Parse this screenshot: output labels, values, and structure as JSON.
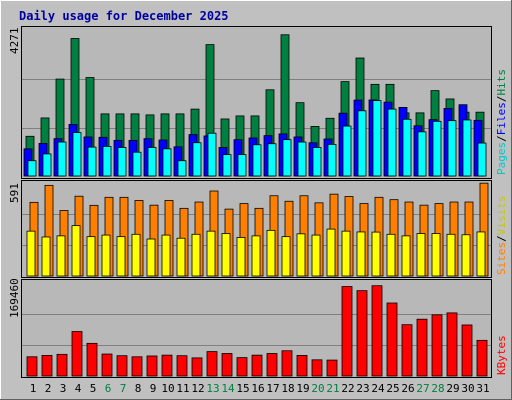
{
  "chart_data": [
    {
      "type": "bar",
      "title": "Daily usage for December 2025",
      "categories": [
        "1",
        "2",
        "3",
        "4",
        "5",
        "6",
        "7",
        "8",
        "9",
        "10",
        "11",
        "12",
        "13",
        "14",
        "15",
        "16",
        "17",
        "18",
        "19",
        "20",
        "21",
        "22",
        "23",
        "24",
        "25",
        "26",
        "27",
        "28",
        "29",
        "30",
        "31"
      ],
      "weekend_days": [
        "6",
        "7",
        "13",
        "14",
        "20",
        "21",
        "27",
        "28"
      ],
      "ymax_label": "4271",
      "ymax": 4271,
      "series": [
        {
          "name": "Hits",
          "color": "#008040",
          "values": [
            1170,
            1710,
            2855,
            4050,
            2900,
            1830,
            1830,
            1830,
            1800,
            1830,
            1830,
            1970,
            3870,
            1680,
            1770,
            1770,
            2540,
            4160,
            2160,
            1460,
            1700,
            2780,
            3475,
            2700,
            2700,
            1860,
            1860,
            2515,
            2270,
            1880,
            1880
          ]
        },
        {
          "name": "Files",
          "color": "#0000FF",
          "values": [
            800,
            960,
            1100,
            1520,
            1150,
            1140,
            1050,
            1050,
            1100,
            1060,
            860,
            1220,
            1180,
            840,
            1070,
            1120,
            1190,
            1240,
            1150,
            980,
            1090,
            1850,
            2235,
            2240,
            2175,
            2020,
            1480,
            1660,
            1990,
            2100,
            1640
          ]
        },
        {
          "name": "Pages",
          "color": "#00FFFF",
          "values": [
            450,
            650,
            1000,
            1280,
            850,
            870,
            840,
            700,
            840,
            800,
            450,
            980,
            1260,
            630,
            630,
            920,
            950,
            1070,
            1000,
            840,
            930,
            1470,
            1920,
            2220,
            1970,
            1670,
            1300,
            1610,
            1630,
            1650,
            970
          ]
        }
      ],
      "legend": [
        "Pages",
        "Files",
        "Hits"
      ],
      "legend_placement": "right"
    },
    {
      "type": "bar",
      "ymax_label": "591",
      "ymax": 591,
      "series": [
        {
          "name": "Visits",
          "color": "#FFFF00",
          "values": [
            285,
            248,
            255,
            320,
            250,
            260,
            250,
            265,
            235,
            260,
            240,
            265,
            285,
            270,
            245,
            255,
            290,
            250,
            268,
            260,
            298,
            285,
            280,
            279,
            265,
            255,
            270,
            270,
            265,
            262,
            280
          ]
        },
        {
          "name": "Sites",
          "color": "#FF8000",
          "values": [
            468,
            576,
            416,
            507,
            449,
            500,
            500,
            480,
            450,
            480,
            430,
            470,
            540,
            425,
            460,
            430,
            510,
            475,
            510,
            465,
            520,
            505,
            460,
            500,
            485,
            470,
            450,
            460,
            470,
            470,
            590
          ]
        }
      ],
      "legend": [
        "Sites",
        "Visits"
      ],
      "legend_placement": "right"
    },
    {
      "type": "bar",
      "ymax_label": "169460",
      "ymax": 169460,
      "series": [
        {
          "name": "KBytes",
          "color": "#FF0000",
          "values": [
            35000,
            37500,
            39500,
            81000,
            59500,
            40000,
            37000,
            35000,
            36500,
            38000,
            37000,
            33000,
            44500,
            41000,
            33500,
            38000,
            41000,
            46000,
            37500,
            29500,
            29000,
            163000,
            155500,
            164500,
            133000,
            93500,
            103500,
            111500,
            115000,
            93000,
            65000
          ]
        }
      ],
      "legend": [
        "KBytes"
      ],
      "legend_placement": "right"
    }
  ]
}
